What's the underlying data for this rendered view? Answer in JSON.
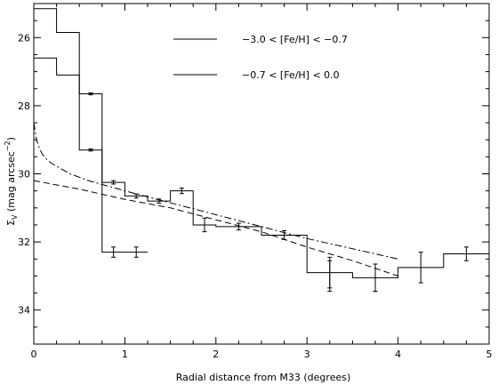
{
  "chart_data": {
    "type": "line",
    "xlabel": "Radial distance from M33 (degrees)",
    "ylabel_main": "Σ",
    "ylabel_sub": "V",
    "ylabel_rest": " (mag arcsec",
    "ylabel_exp": "−2",
    "ylabel_close": ")",
    "xlim": [
      0,
      5
    ],
    "ylim": [
      35,
      25
    ],
    "y_inverted": true,
    "grid": false,
    "legend_position": "top-right",
    "x_ticks": [
      0,
      1,
      2,
      3,
      4,
      5
    ],
    "y_ticks": [
      26,
      28,
      30,
      32,
      34
    ],
    "legend": [
      "−3.0 < [Fe/H] < −0.7",
      "−0.7 < [Fe/H] <  0.0"
    ],
    "series": [
      {
        "style": "step",
        "edges": [
          0,
          0.25,
          0.5,
          0.75,
          1.0,
          1.25
        ],
        "values": [
          26.6,
          27.1,
          29.3,
          32.3,
          32.3
        ],
        "errors": [
          0,
          0,
          0.03,
          0.15,
          0.15
        ]
      },
      {
        "style": "step",
        "edges": [
          0,
          0.25,
          0.5,
          0.75,
          1.0,
          1.25,
          1.5,
          1.75,
          2.0,
          2.5,
          3.0,
          3.5,
          4.0,
          4.5,
          5.0
        ],
        "values": [
          25.15,
          25.85,
          27.65,
          30.25,
          30.65,
          30.8,
          30.5,
          31.5,
          31.55,
          31.8,
          32.9,
          33.05,
          32.75,
          32.35
        ],
        "errors": [
          0,
          0,
          0.03,
          0.05,
          0.06,
          0.06,
          0.08,
          0.2,
          0.1,
          0.13,
          0.45,
          0.4,
          0.45,
          0.2
        ],
        "extra_points": [
          [
            3.25,
            33.0,
            0.45
          ],
          [
            3.75,
            33.05,
            0.4
          ]
        ]
      },
      {
        "style": "dashed",
        "x": [
          0,
          0.5,
          1.0,
          1.5,
          2.0,
          2.5,
          3.0,
          3.5,
          4.0
        ],
        "y": [
          30.2,
          30.45,
          30.75,
          31.0,
          31.35,
          31.7,
          32.15,
          32.55,
          33.0
        ]
      },
      {
        "style": "dashdot",
        "x": [
          0,
          0.03,
          0.06,
          0.1,
          0.15,
          0.2,
          0.3,
          0.4,
          0.6,
          0.8,
          1.0,
          1.5,
          2.0,
          2.5,
          3.0,
          3.5,
          4.0
        ],
        "y": [
          28.5,
          29.0,
          29.25,
          29.45,
          29.6,
          29.7,
          29.85,
          30.0,
          30.2,
          30.35,
          30.5,
          30.85,
          31.2,
          31.55,
          31.9,
          32.2,
          32.5
        ]
      }
    ]
  }
}
